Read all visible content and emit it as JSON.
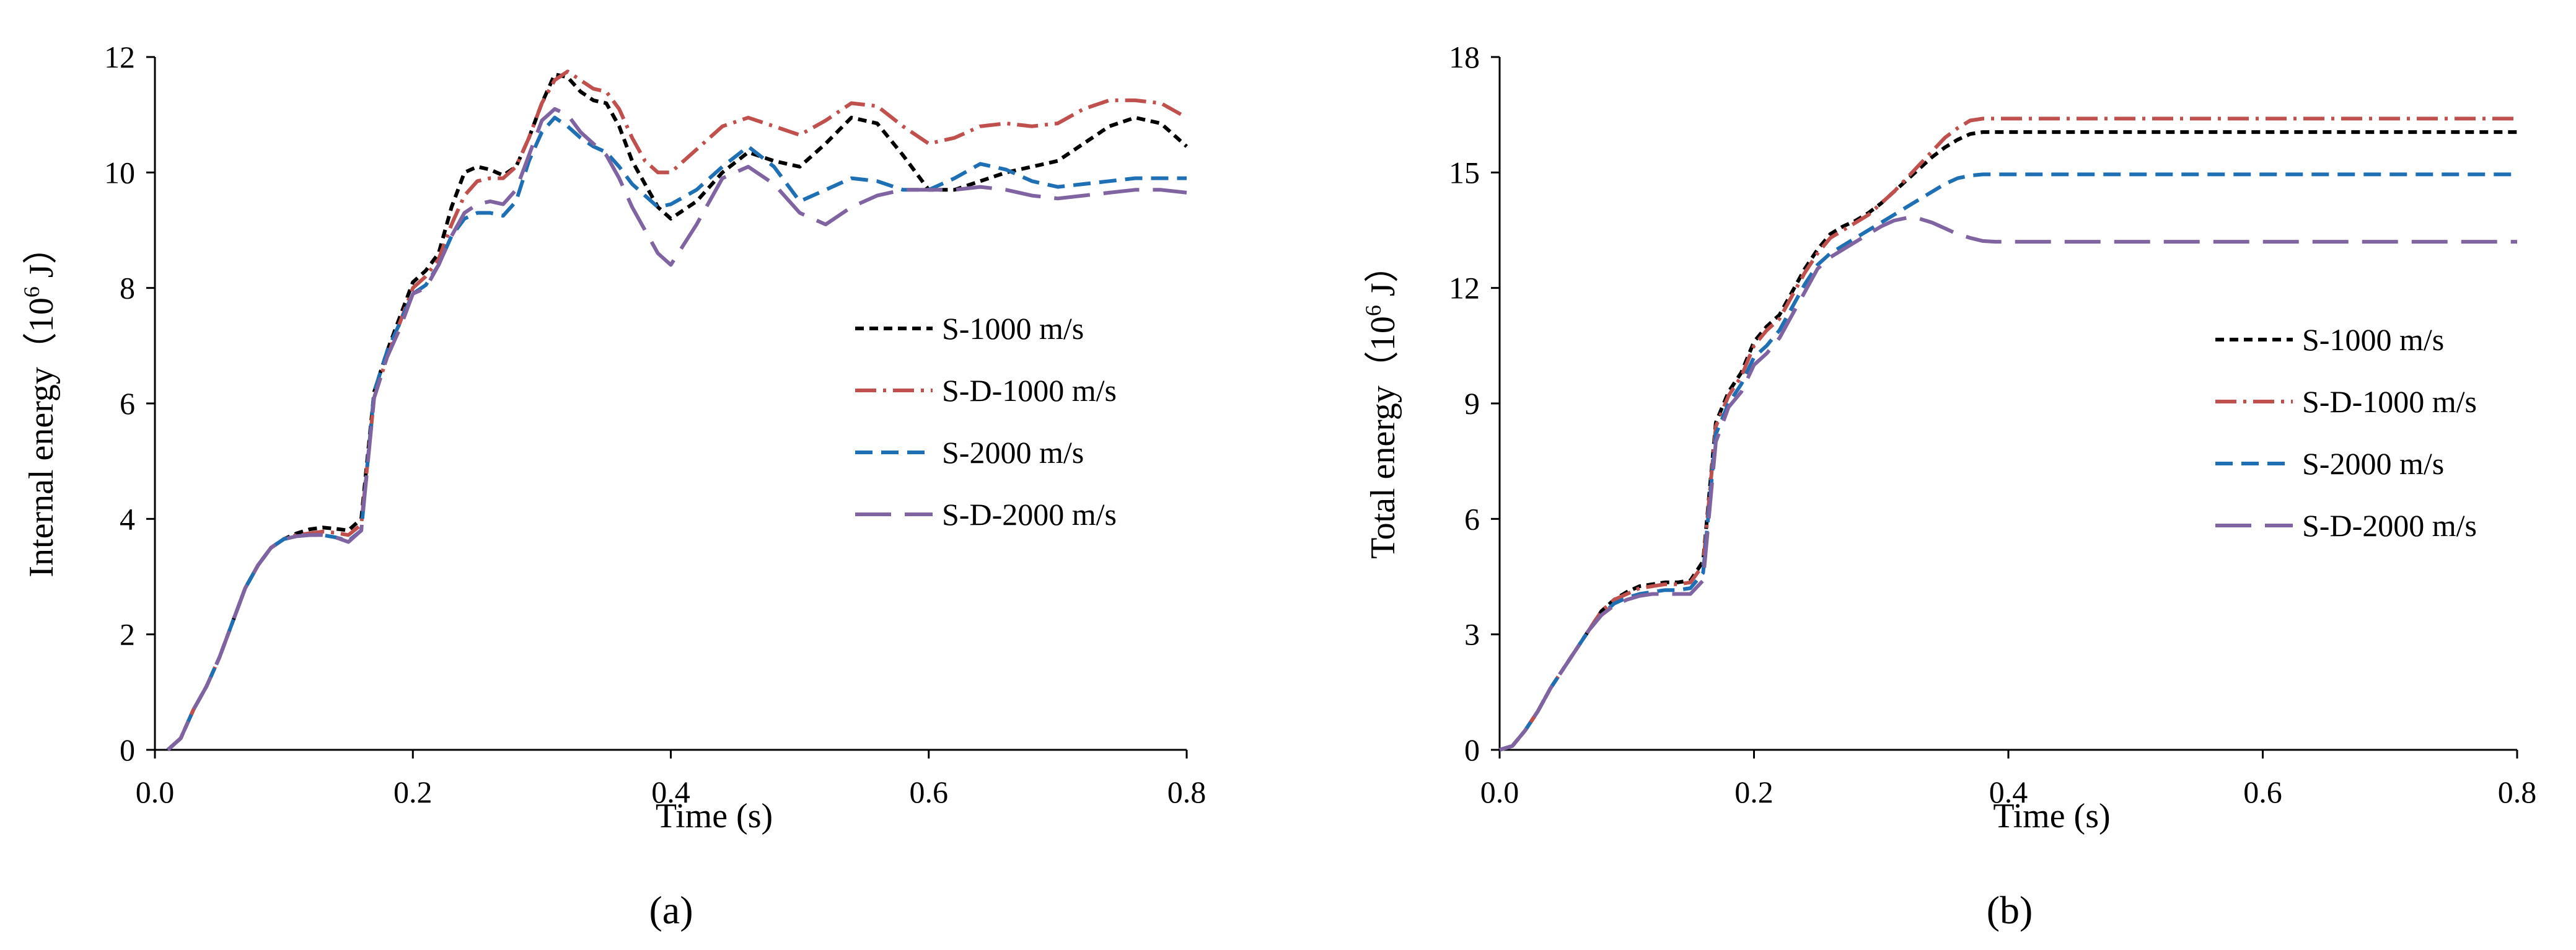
{
  "chart_data": [
    {
      "type": "line",
      "panel_label": "(a)",
      "xlabel": "Time (s)",
      "ylabel_prefix": "Internal energy（10",
      "ylabel_exp": "6",
      "ylabel_suffix": " J）",
      "xlim": [
        0,
        0.8
      ],
      "ylim": [
        0,
        12
      ],
      "xticks": [
        0,
        0.2,
        0.4,
        0.6,
        0.8
      ],
      "xtick_labels": [
        "0.0",
        "0.2",
        "0.4",
        "0.6",
        "0.8"
      ],
      "yticks": [
        0,
        2,
        4,
        6,
        8,
        10,
        12
      ],
      "ytick_labels": [
        "0",
        "2",
        "4",
        "6",
        "8",
        "10",
        "12"
      ],
      "grid": false,
      "legend_position": "center-right",
      "series": [
        {
          "name": "S-1000 m/s",
          "color": "#000000",
          "dash": "short",
          "x": [
            0.01,
            0.02,
            0.03,
            0.04,
            0.05,
            0.06,
            0.07,
            0.08,
            0.09,
            0.1,
            0.11,
            0.12,
            0.13,
            0.14,
            0.15,
            0.16,
            0.17,
            0.18,
            0.19,
            0.2,
            0.21,
            0.22,
            0.23,
            0.24,
            0.25,
            0.26,
            0.27,
            0.28,
            0.29,
            0.3,
            0.31,
            0.32,
            0.33,
            0.34,
            0.35,
            0.36,
            0.37,
            0.38,
            0.39,
            0.4,
            0.42,
            0.44,
            0.46,
            0.48,
            0.5,
            0.52,
            0.54,
            0.56,
            0.58,
            0.6,
            0.62,
            0.64,
            0.66,
            0.68,
            0.7,
            0.72,
            0.74,
            0.76,
            0.78,
            0.8
          ],
          "y": [
            0,
            0.2,
            0.7,
            1.1,
            1.6,
            2.2,
            2.8,
            3.2,
            3.5,
            3.65,
            3.75,
            3.82,
            3.85,
            3.83,
            3.8,
            4.0,
            6.2,
            6.9,
            7.5,
            8.1,
            8.3,
            8.6,
            9.4,
            10.0,
            10.1,
            10.05,
            9.95,
            10.1,
            10.6,
            11.2,
            11.7,
            11.65,
            11.4,
            11.25,
            11.2,
            10.8,
            10.2,
            9.8,
            9.4,
            9.2,
            9.5,
            10.0,
            10.35,
            10.2,
            10.1,
            10.5,
            10.95,
            10.85,
            10.3,
            9.7,
            9.7,
            9.85,
            10.0,
            10.1,
            10.2,
            10.5,
            10.8,
            10.95,
            10.85,
            10.45
          ]
        },
        {
          "name": "S-D-1000 m/s",
          "color": "#c0504d",
          "dash": "dashdot",
          "x": [
            0.01,
            0.02,
            0.03,
            0.04,
            0.05,
            0.06,
            0.07,
            0.08,
            0.09,
            0.1,
            0.11,
            0.12,
            0.13,
            0.14,
            0.15,
            0.16,
            0.17,
            0.18,
            0.19,
            0.2,
            0.21,
            0.22,
            0.23,
            0.24,
            0.25,
            0.26,
            0.27,
            0.28,
            0.29,
            0.3,
            0.31,
            0.32,
            0.33,
            0.34,
            0.35,
            0.36,
            0.37,
            0.38,
            0.39,
            0.4,
            0.42,
            0.44,
            0.46,
            0.48,
            0.5,
            0.52,
            0.54,
            0.56,
            0.58,
            0.6,
            0.62,
            0.64,
            0.66,
            0.68,
            0.7,
            0.72,
            0.74,
            0.76,
            0.78,
            0.8
          ],
          "y": [
            0,
            0.2,
            0.7,
            1.1,
            1.6,
            2.2,
            2.8,
            3.2,
            3.5,
            3.65,
            3.72,
            3.75,
            3.78,
            3.76,
            3.72,
            3.9,
            6.1,
            6.8,
            7.4,
            8.0,
            8.2,
            8.5,
            9.1,
            9.6,
            9.85,
            9.9,
            9.9,
            10.1,
            10.6,
            11.2,
            11.6,
            11.75,
            11.6,
            11.45,
            11.4,
            11.1,
            10.6,
            10.2,
            10.0,
            10.0,
            10.4,
            10.8,
            10.95,
            10.8,
            10.65,
            10.9,
            11.2,
            11.15,
            10.8,
            10.5,
            10.6,
            10.8,
            10.85,
            10.8,
            10.85,
            11.1,
            11.25,
            11.25,
            11.2,
            10.95
          ]
        },
        {
          "name": "S-2000 m/s",
          "color": "#1f6fb5",
          "dash": "dash",
          "x": [
            0.01,
            0.02,
            0.03,
            0.04,
            0.05,
            0.06,
            0.07,
            0.08,
            0.09,
            0.1,
            0.11,
            0.12,
            0.13,
            0.14,
            0.15,
            0.16,
            0.17,
            0.18,
            0.19,
            0.2,
            0.21,
            0.22,
            0.23,
            0.24,
            0.25,
            0.26,
            0.27,
            0.28,
            0.29,
            0.3,
            0.31,
            0.32,
            0.33,
            0.34,
            0.35,
            0.36,
            0.37,
            0.38,
            0.39,
            0.4,
            0.42,
            0.44,
            0.46,
            0.48,
            0.5,
            0.52,
            0.54,
            0.56,
            0.58,
            0.6,
            0.62,
            0.64,
            0.66,
            0.68,
            0.7,
            0.72,
            0.74,
            0.76,
            0.78,
            0.8
          ],
          "y": [
            0,
            0.2,
            0.7,
            1.1,
            1.6,
            2.2,
            2.8,
            3.2,
            3.5,
            3.65,
            3.7,
            3.72,
            3.72,
            3.68,
            3.62,
            3.8,
            6.2,
            6.9,
            7.4,
            7.9,
            8.05,
            8.4,
            8.9,
            9.2,
            9.3,
            9.3,
            9.25,
            9.5,
            10.2,
            10.7,
            10.95,
            10.8,
            10.6,
            10.45,
            10.35,
            10.1,
            9.8,
            9.6,
            9.4,
            9.45,
            9.7,
            10.1,
            10.45,
            10.1,
            9.5,
            9.7,
            9.9,
            9.85,
            9.7,
            9.7,
            9.9,
            10.15,
            10.05,
            9.85,
            9.75,
            9.8,
            9.85,
            9.9,
            9.9,
            9.9
          ]
        },
        {
          "name": "S-D-2000 m/s",
          "color": "#8064a2",
          "dash": "long",
          "x": [
            0.01,
            0.02,
            0.03,
            0.04,
            0.05,
            0.06,
            0.07,
            0.08,
            0.09,
            0.1,
            0.11,
            0.12,
            0.13,
            0.14,
            0.15,
            0.16,
            0.17,
            0.18,
            0.19,
            0.2,
            0.21,
            0.22,
            0.23,
            0.24,
            0.25,
            0.26,
            0.27,
            0.28,
            0.29,
            0.3,
            0.31,
            0.32,
            0.33,
            0.34,
            0.35,
            0.36,
            0.37,
            0.38,
            0.39,
            0.4,
            0.42,
            0.44,
            0.46,
            0.48,
            0.5,
            0.52,
            0.54,
            0.56,
            0.58,
            0.6,
            0.62,
            0.64,
            0.66,
            0.68,
            0.7,
            0.72,
            0.74,
            0.76,
            0.78,
            0.8
          ],
          "y": [
            0,
            0.2,
            0.7,
            1.1,
            1.6,
            2.2,
            2.8,
            3.2,
            3.5,
            3.65,
            3.7,
            3.72,
            3.72,
            3.68,
            3.6,
            3.8,
            6.1,
            6.8,
            7.3,
            7.9,
            8.0,
            8.4,
            8.9,
            9.3,
            9.45,
            9.5,
            9.45,
            9.7,
            10.3,
            10.9,
            11.1,
            11.0,
            10.7,
            10.5,
            10.3,
            9.9,
            9.4,
            9.0,
            8.6,
            8.4,
            9.1,
            9.9,
            10.1,
            9.8,
            9.3,
            9.1,
            9.4,
            9.6,
            9.7,
            9.7,
            9.7,
            9.75,
            9.7,
            9.6,
            9.55,
            9.6,
            9.65,
            9.7,
            9.7,
            9.65
          ]
        }
      ]
    },
    {
      "type": "line",
      "panel_label": "(b)",
      "xlabel": "Time (s)",
      "ylabel_prefix": "Total energy（10",
      "ylabel_exp": "6",
      "ylabel_suffix": " J）",
      "xlim": [
        0,
        0.8
      ],
      "ylim": [
        0,
        18
      ],
      "xticks": [
        0,
        0.2,
        0.4,
        0.6,
        0.8
      ],
      "xtick_labels": [
        "0.0",
        "0.2",
        "0.4",
        "0.6",
        "0.8"
      ],
      "yticks": [
        0,
        3,
        6,
        9,
        12,
        15,
        18
      ],
      "ytick_labels": [
        "0",
        "3",
        "6",
        "9",
        "12",
        "15",
        "18"
      ],
      "grid": false,
      "legend_position": "center-right",
      "series": [
        {
          "name": "S-1000 m/s",
          "color": "#000000",
          "dash": "short",
          "x": [
            0.0,
            0.01,
            0.02,
            0.03,
            0.04,
            0.05,
            0.06,
            0.07,
            0.08,
            0.09,
            0.1,
            0.11,
            0.12,
            0.13,
            0.14,
            0.15,
            0.16,
            0.17,
            0.18,
            0.19,
            0.2,
            0.21,
            0.22,
            0.23,
            0.24,
            0.25,
            0.26,
            0.27,
            0.28,
            0.29,
            0.3,
            0.31,
            0.32,
            0.33,
            0.34,
            0.35,
            0.36,
            0.37,
            0.38,
            0.39,
            0.4,
            0.5,
            0.6,
            0.7,
            0.8
          ],
          "y": [
            0,
            0.1,
            0.5,
            1.0,
            1.6,
            2.1,
            2.6,
            3.1,
            3.6,
            3.9,
            4.1,
            4.25,
            4.3,
            4.35,
            4.35,
            4.4,
            4.9,
            8.5,
            9.3,
            9.8,
            10.6,
            11.0,
            11.3,
            11.9,
            12.5,
            13.0,
            13.4,
            13.6,
            13.75,
            13.95,
            14.2,
            14.5,
            14.8,
            15.1,
            15.4,
            15.65,
            15.85,
            16.0,
            16.05,
            16.05,
            16.05,
            16.05,
            16.05,
            16.05,
            16.05
          ]
        },
        {
          "name": "S-D-1000 m/s",
          "color": "#c0504d",
          "dash": "dashdot",
          "x": [
            0.0,
            0.01,
            0.02,
            0.03,
            0.04,
            0.05,
            0.06,
            0.07,
            0.08,
            0.09,
            0.1,
            0.11,
            0.12,
            0.13,
            0.14,
            0.15,
            0.16,
            0.17,
            0.18,
            0.19,
            0.2,
            0.21,
            0.22,
            0.23,
            0.24,
            0.25,
            0.26,
            0.27,
            0.28,
            0.29,
            0.3,
            0.31,
            0.32,
            0.33,
            0.34,
            0.35,
            0.36,
            0.37,
            0.38,
            0.39,
            0.4,
            0.5,
            0.6,
            0.7,
            0.8
          ],
          "y": [
            0,
            0.1,
            0.5,
            1.0,
            1.6,
            2.1,
            2.6,
            3.1,
            3.6,
            3.9,
            4.05,
            4.2,
            4.25,
            4.3,
            4.3,
            4.35,
            4.8,
            8.4,
            9.2,
            9.7,
            10.5,
            10.9,
            11.2,
            11.8,
            12.4,
            12.9,
            13.3,
            13.5,
            13.7,
            13.9,
            14.2,
            14.5,
            14.85,
            15.2,
            15.55,
            15.9,
            16.15,
            16.35,
            16.4,
            16.4,
            16.4,
            16.4,
            16.4,
            16.4,
            16.4
          ]
        },
        {
          "name": "S-2000 m/s",
          "color": "#1f6fb5",
          "dash": "dash",
          "x": [
            0.0,
            0.01,
            0.02,
            0.03,
            0.04,
            0.05,
            0.06,
            0.07,
            0.08,
            0.09,
            0.1,
            0.11,
            0.12,
            0.13,
            0.14,
            0.15,
            0.16,
            0.17,
            0.18,
            0.19,
            0.2,
            0.21,
            0.22,
            0.23,
            0.24,
            0.25,
            0.26,
            0.27,
            0.28,
            0.29,
            0.3,
            0.31,
            0.32,
            0.33,
            0.34,
            0.35,
            0.36,
            0.37,
            0.38,
            0.39,
            0.4,
            0.5,
            0.6,
            0.7,
            0.8
          ],
          "y": [
            0,
            0.1,
            0.5,
            1.0,
            1.6,
            2.1,
            2.6,
            3.1,
            3.5,
            3.8,
            3.95,
            4.05,
            4.1,
            4.15,
            4.15,
            4.2,
            4.6,
            8.2,
            9.0,
            9.5,
            10.2,
            10.5,
            10.9,
            11.5,
            12.1,
            12.6,
            12.9,
            13.1,
            13.3,
            13.5,
            13.7,
            13.9,
            14.1,
            14.3,
            14.5,
            14.7,
            14.85,
            14.92,
            14.95,
            14.95,
            14.95,
            14.95,
            14.95,
            14.95,
            14.95
          ]
        },
        {
          "name": "S-D-2000 m/s",
          "color": "#8064a2",
          "dash": "long",
          "x": [
            0.0,
            0.01,
            0.02,
            0.03,
            0.04,
            0.05,
            0.06,
            0.07,
            0.08,
            0.09,
            0.1,
            0.11,
            0.12,
            0.13,
            0.14,
            0.15,
            0.16,
            0.17,
            0.18,
            0.19,
            0.2,
            0.21,
            0.22,
            0.23,
            0.24,
            0.25,
            0.26,
            0.27,
            0.28,
            0.29,
            0.3,
            0.31,
            0.32,
            0.33,
            0.34,
            0.35,
            0.36,
            0.37,
            0.38,
            0.39,
            0.4,
            0.5,
            0.6,
            0.7,
            0.8
          ],
          "y": [
            0,
            0.1,
            0.5,
            1.0,
            1.6,
            2.1,
            2.6,
            3.1,
            3.5,
            3.75,
            3.9,
            4.0,
            4.05,
            4.05,
            4.05,
            4.05,
            4.4,
            8.0,
            8.9,
            9.3,
            10.0,
            10.3,
            10.7,
            11.3,
            11.9,
            12.5,
            12.8,
            13.0,
            13.2,
            13.4,
            13.6,
            13.75,
            13.82,
            13.8,
            13.7,
            13.55,
            13.4,
            13.3,
            13.22,
            13.2,
            13.2,
            13.2,
            13.2,
            13.2,
            13.2
          ]
        }
      ]
    }
  ]
}
